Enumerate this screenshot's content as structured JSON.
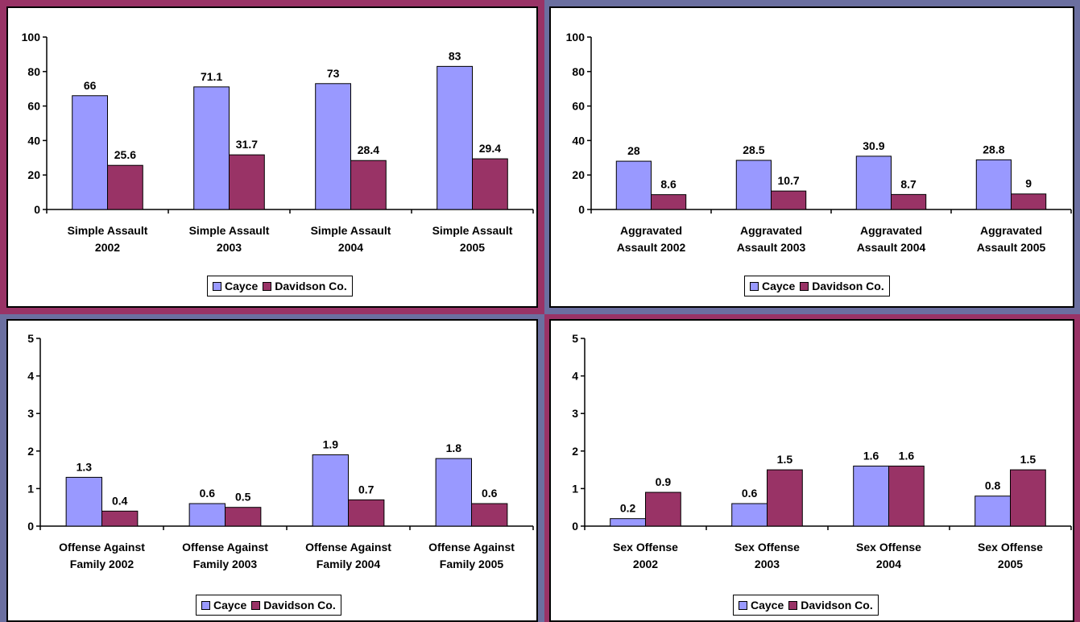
{
  "colors": {
    "cayce": "#9999ff",
    "davidson": "#993366",
    "border_maroon": "#993366",
    "border_slate": "#6b6fa0"
  },
  "chart_data": [
    {
      "type": "bar",
      "categories": [
        [
          "Simple Assault",
          "2002"
        ],
        [
          "Simple Assault",
          "2003"
        ],
        [
          "Simple Assault",
          "2004"
        ],
        [
          "Simple Assault",
          "2005"
        ]
      ],
      "series": [
        {
          "name": "Cayce",
          "values": [
            66,
            71.1,
            73,
            83
          ],
          "labels": [
            "66",
            "71.1",
            "73",
            "83"
          ]
        },
        {
          "name": "Davidson Co.",
          "values": [
            25.6,
            31.7,
            28.4,
            29.4
          ],
          "labels": [
            "25.6",
            "31.7",
            "28.4",
            "29.4"
          ]
        }
      ],
      "yticks": [
        "0",
        "20",
        "40",
        "60",
        "80",
        "100"
      ],
      "ylim": [
        0,
        100
      ],
      "legend": "bottom-center"
    },
    {
      "type": "bar",
      "categories": [
        [
          "Aggravated",
          "Assault 2002"
        ],
        [
          "Aggravated",
          "Assault 2003"
        ],
        [
          "Aggravated",
          "Assault 2004"
        ],
        [
          "Aggravated",
          "Assault 2005"
        ]
      ],
      "series": [
        {
          "name": "Cayce",
          "values": [
            28,
            28.5,
            30.9,
            28.8
          ],
          "labels": [
            "28",
            "28.5",
            "30.9",
            "28.8"
          ]
        },
        {
          "name": "Davidson Co.",
          "values": [
            8.6,
            10.7,
            8.7,
            9
          ],
          "labels": [
            "8.6",
            "10.7",
            "8.7",
            "9"
          ]
        }
      ],
      "yticks": [
        "0",
        "20",
        "40",
        "60",
        "80",
        "100"
      ],
      "ylim": [
        0,
        100
      ],
      "legend": "bottom-center"
    },
    {
      "type": "bar",
      "categories": [
        [
          "Offense Against",
          "Family 2002"
        ],
        [
          "Offense Against",
          "Family 2003"
        ],
        [
          "Offense Against",
          "Family 2004"
        ],
        [
          "Offense Against",
          "Family 2005"
        ]
      ],
      "series": [
        {
          "name": "Cayce",
          "values": [
            1.3,
            0.6,
            1.9,
            1.8
          ],
          "labels": [
            "1.3",
            "0.6",
            "1.9",
            "1.8"
          ]
        },
        {
          "name": "Davidson Co.",
          "values": [
            0.4,
            0.5,
            0.7,
            0.6
          ],
          "labels": [
            "0.4",
            "0.5",
            "0.7",
            "0.6"
          ]
        }
      ],
      "yticks": [
        "0",
        "1",
        "2",
        "3",
        "4",
        "5"
      ],
      "ylim": [
        0,
        5
      ],
      "legend": "bottom-center"
    },
    {
      "type": "bar",
      "categories": [
        [
          "Sex Offense",
          "2002"
        ],
        [
          "Sex Offense",
          "2003"
        ],
        [
          "Sex Offense",
          "2004"
        ],
        [
          "Sex Offense",
          "2005"
        ]
      ],
      "series": [
        {
          "name": "Cayce",
          "values": [
            0.2,
            0.6,
            1.6,
            0.8
          ],
          "labels": [
            "0.2",
            "0.6",
            "1.6",
            "0.8"
          ]
        },
        {
          "name": "Davidson Co.",
          "values": [
            0.9,
            1.5,
            1.6,
            1.5
          ],
          "labels": [
            "0.9",
            "1.5",
            "1.6",
            "1.5"
          ]
        }
      ],
      "yticks": [
        "0",
        "1",
        "2",
        "3",
        "4",
        "5"
      ],
      "ylim": [
        0,
        5
      ],
      "legend": "bottom-center"
    }
  ]
}
